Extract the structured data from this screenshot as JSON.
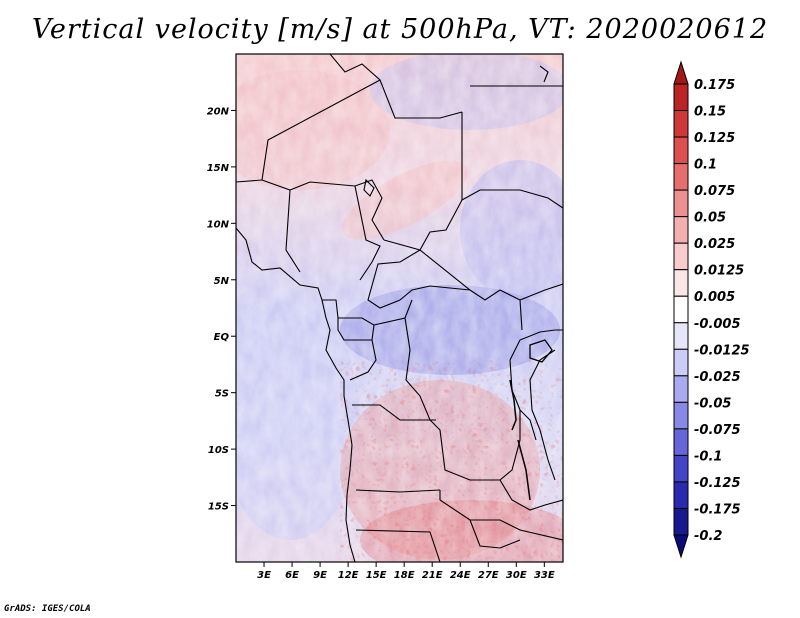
{
  "title": "Vertical velocity [m/s] at 500hPa, VT: 2020020612",
  "credit": "GrADS: IGES/COLA",
  "map": {
    "variable": "Vertical velocity",
    "units": "m/s",
    "level": "500hPa",
    "valid_time": "2020020612",
    "lon_range": [
      0,
      35
    ],
    "lat_range": [
      -20,
      25
    ],
    "lon_ticks": [
      "3E",
      "6E",
      "9E",
      "12E",
      "15E",
      "18E",
      "21E",
      "24E",
      "27E",
      "30E",
      "33E"
    ],
    "lon_tick_values": [
      3,
      6,
      9,
      12,
      15,
      18,
      21,
      24,
      27,
      30,
      33
    ],
    "lat_ticks": [
      "20N",
      "15N",
      "10N",
      "5N",
      "EQ",
      "5S",
      "10S",
      "15S"
    ],
    "lat_tick_values": [
      20,
      15,
      10,
      5,
      0,
      -5,
      -10,
      -15
    ]
  },
  "colorbar": {
    "labels": [
      "0.175",
      "0.15",
      "0.125",
      "0.1",
      "0.075",
      "0.05",
      "0.025",
      "0.0125",
      "0.005",
      "-0.005",
      "-0.0125",
      "-0.025",
      "-0.05",
      "-0.075",
      "-0.1",
      "-0.125",
      "-0.175",
      "-0.2"
    ],
    "colors": [
      "#a01818",
      "#bb2424",
      "#d03838",
      "#de5050",
      "#e66e6e",
      "#ee9090",
      "#f4b0b0",
      "#f8cccc",
      "#fbe6e6",
      "#ffffff",
      "#e6e6fb",
      "#ccccf6",
      "#aaaaf0",
      "#8888e6",
      "#6666d8",
      "#4444c8",
      "#2a2ab0",
      "#181890",
      "#0a0a78"
    ]
  }
}
